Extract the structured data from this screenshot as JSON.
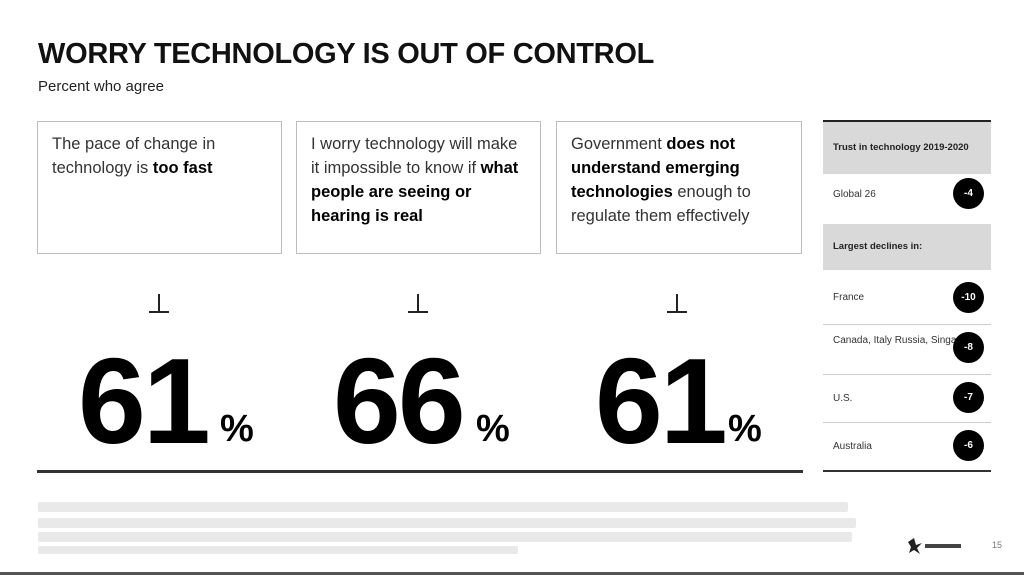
{
  "header": {
    "title": "WORRY TECHNOLOGY IS OUT OF CONTROL",
    "subtitle": "Percent who agree"
  },
  "statements": [
    {
      "parts": [
        {
          "text": "The pace of change in technology is ",
          "bold": false
        },
        {
          "text": "too fast",
          "bold": true
        }
      ],
      "value": "61",
      "unit": "%"
    },
    {
      "parts": [
        {
          "text": "I worry technology will make it impossible to know if ",
          "bold": false
        },
        {
          "text": "what people are seeing or hearing is real",
          "bold": true
        }
      ],
      "value": "66",
      "unit": "%"
    },
    {
      "parts": [
        {
          "text": "Government ",
          "bold": false
        },
        {
          "text": "does not understand emerging technologies",
          "bold": true
        },
        {
          "text": " enough to regulate them effectively",
          "bold": false
        }
      ],
      "value": "61",
      "unit": "%"
    }
  ],
  "sidebar": {
    "header": "Trust in technology 2019-2020",
    "global": {
      "label": "Global 26",
      "value": "-4"
    },
    "declines_header": "Largest declines in:",
    "declines": [
      {
        "label": "France",
        "value": "-10"
      },
      {
        "label": "Canada, Italy Russia, Singapore",
        "value": "-8"
      },
      {
        "label": "U.S.",
        "value": "-7"
      },
      {
        "label": "Australia",
        "value": "-6"
      }
    ]
  },
  "footer": {
    "brand": "Edelman",
    "page_number": "15"
  }
}
